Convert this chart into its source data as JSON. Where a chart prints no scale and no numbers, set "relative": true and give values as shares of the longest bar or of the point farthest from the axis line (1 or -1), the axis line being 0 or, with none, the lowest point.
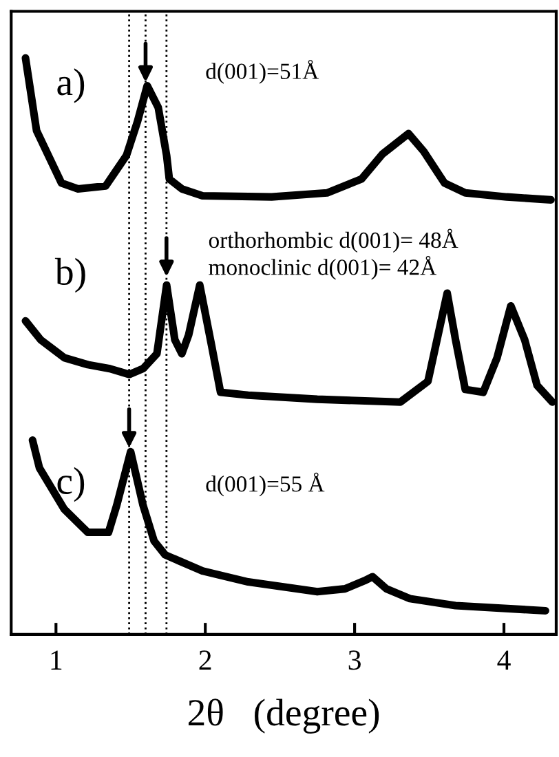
{
  "chart_data": {
    "type": "line",
    "relative": true,
    "xlabel": "2θ   (degree)",
    "xlim": [
      0.7,
      4.35
    ],
    "xticks": [
      1,
      2,
      3,
      4
    ],
    "grid": false,
    "legend": "left",
    "marker": "none",
    "line_style": "solid",
    "series": [
      {
        "name": "a)",
        "color": "#000000",
        "x": [
          0.796,
          0.87,
          1.037,
          1.148,
          1.333,
          1.472,
          1.546,
          1.611,
          1.685,
          1.741,
          1.759,
          1.843,
          1.981,
          2.444,
          2.815,
          3.046,
          3.185,
          3.361,
          3.463,
          3.602,
          3.741,
          4.019,
          4.315
        ],
        "values": [
          1.0,
          0.874,
          0.783,
          0.773,
          0.778,
          0.831,
          0.89,
          0.952,
          0.914,
          0.831,
          0.79,
          0.773,
          0.761,
          0.759,
          0.766,
          0.79,
          0.833,
          0.869,
          0.838,
          0.783,
          0.766,
          0.759,
          0.754
        ]
      },
      {
        "name": "b)",
        "color": "#000000",
        "x": [
          0.796,
          0.898,
          1.056,
          1.213,
          1.361,
          1.491,
          1.583,
          1.676,
          1.741,
          1.796,
          1.843,
          1.889,
          1.963,
          2.046,
          2.102,
          2.287,
          2.75,
          3.306,
          3.491,
          3.62,
          3.676,
          3.741,
          3.861,
          3.954,
          4.046,
          4.139,
          4.222,
          4.324
        ],
        "values": [
          0.544,
          0.511,
          0.48,
          0.468,
          0.461,
          0.451,
          0.461,
          0.487,
          0.606,
          0.511,
          0.487,
          0.52,
          0.606,
          0.496,
          0.42,
          0.415,
          0.408,
          0.403,
          0.439,
          0.592,
          0.511,
          0.425,
          0.42,
          0.48,
          0.57,
          0.511,
          0.432,
          0.403
        ]
      },
      {
        "name": "c)",
        "color": "#000000",
        "x": [
          0.843,
          0.889,
          1.056,
          1.213,
          1.352,
          1.407,
          1.5,
          1.583,
          1.657,
          1.731,
          1.981,
          2.287,
          2.75,
          2.935,
          3.065,
          3.12,
          3.213,
          3.37,
          3.676,
          4.278
        ],
        "values": [
          0.337,
          0.289,
          0.217,
          0.177,
          0.177,
          0.224,
          0.317,
          0.224,
          0.162,
          0.138,
          0.11,
          0.091,
          0.074,
          0.079,
          0.093,
          0.1,
          0.079,
          0.062,
          0.05,
          0.041
        ]
      }
    ],
    "ref_lines": [
      {
        "axis": "x",
        "value": 1.49,
        "color": "#000000",
        "line_style": "dotted"
      },
      {
        "axis": "x",
        "value": 1.6,
        "color": "#000000",
        "line_style": "dotted"
      },
      {
        "axis": "x",
        "value": 1.74,
        "color": "#000000",
        "line_style": "dotted"
      }
    ],
    "annotations": [
      "d(001)=51Å",
      "orthorhombic d(001)= 48Å",
      "monoclinic d(001)= 42Å",
      "d(001)=55 Å"
    ]
  }
}
